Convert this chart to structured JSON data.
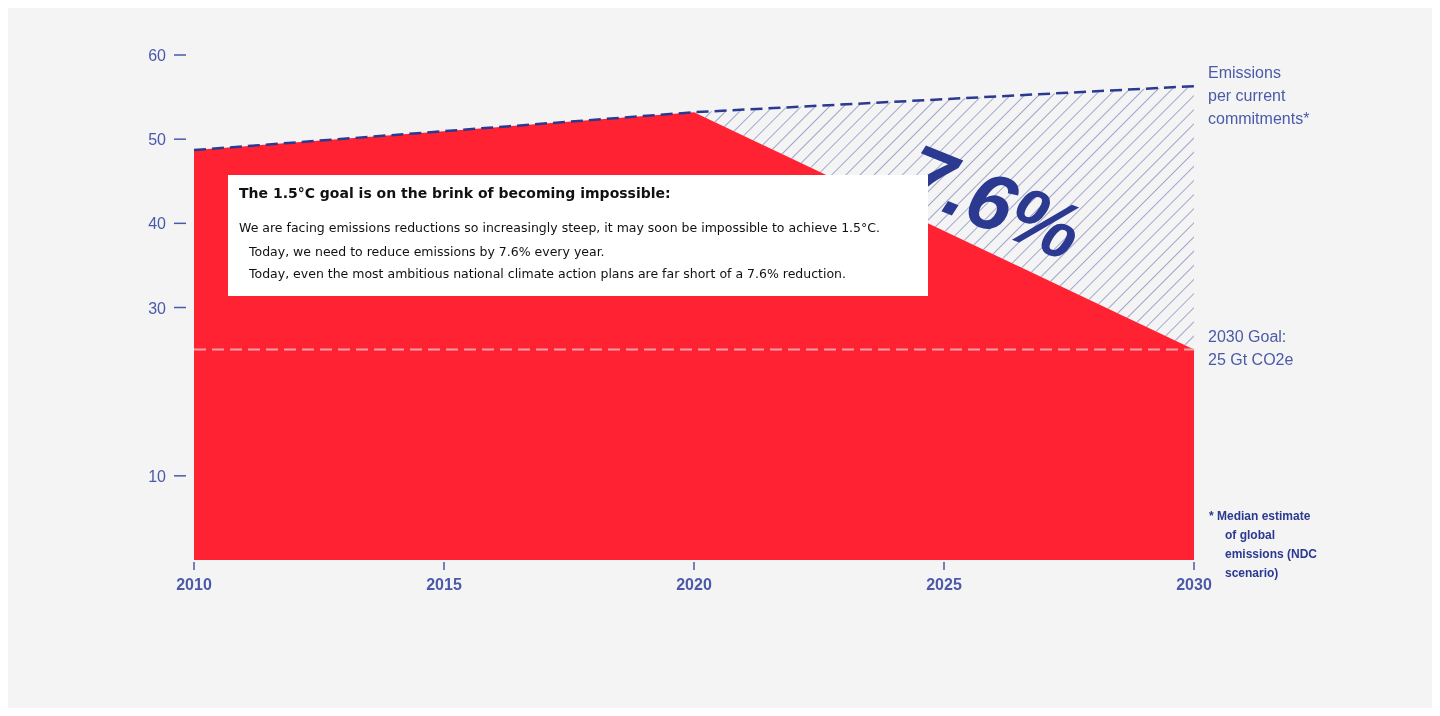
{
  "chart_data": {
    "type": "area",
    "x": [
      2010,
      2020,
      2030
    ],
    "series": [
      {
        "type": "area",
        "color": "#ff2233",
        "values": [
          48.7,
          53.2,
          25
        ]
      },
      {
        "type": "line",
        "name": "Emissions per current commitments*",
        "color": "#2b3990",
        "line_style": "dashed",
        "values": [
          48.7,
          53.2,
          56.3
        ],
        "lower": [
          48.7,
          53.2,
          25
        ],
        "upper": [
          48.7,
          53.2,
          56.3
        ]
      }
    ],
    "xlim": [
      2010,
      2030
    ],
    "xticks": [
      2010,
      2015,
      2020,
      2025,
      2030
    ],
    "ylim": [
      0,
      60
    ],
    "yticks": [
      10,
      30,
      40,
      50,
      60
    ],
    "ref_lines": [
      {
        "axis": "y",
        "value": 25,
        "label": "2030 Goal: 25 Gt CO2e",
        "color": "#f4a0a8",
        "line_style": "dashed"
      }
    ],
    "annotations": [
      "7.6%",
      "The 1.5°C goal is on the brink of becoming impossible:",
      "We are facing emissions reductions so increasingly steep, it may soon be impossible to achieve 1.5°C.",
      "Today, we need to reduce emissions by 7.6% every year.",
      "Today, even the most ambitious national climate action plans are far short of a 7.6% reduction.",
      "* Median estimate of global emissions (NDC scenario)"
    ]
  }
}
